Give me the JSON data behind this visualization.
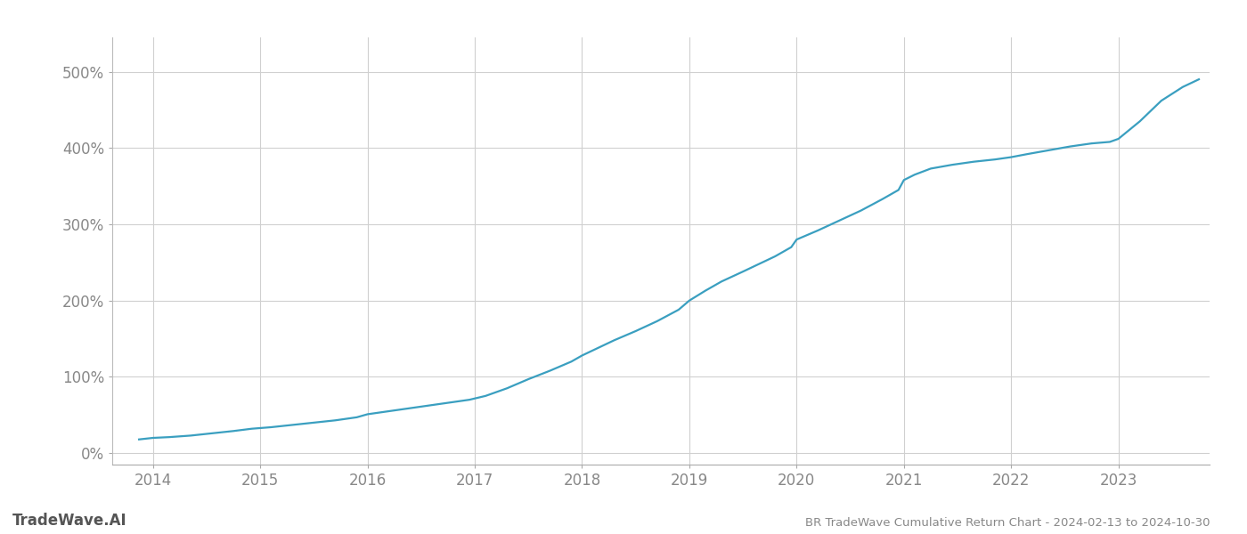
{
  "title": "BR TradeWave Cumulative Return Chart - 2024-02-13 to 2024-10-30",
  "watermark": "TradeWave.AI",
  "line_color": "#3a9fc0",
  "background_color": "#ffffff",
  "grid_color": "#d0d0d0",
  "x_years": [
    2014,
    2015,
    2016,
    2017,
    2018,
    2019,
    2020,
    2021,
    2022,
    2023
  ],
  "y_ticks": [
    0,
    100,
    200,
    300,
    400,
    500
  ],
  "xlim": [
    2013.62,
    2023.85
  ],
  "ylim": [
    -15,
    545
  ],
  "x_values": [
    2013.87,
    2014.0,
    2014.15,
    2014.35,
    2014.55,
    2014.75,
    2014.92,
    2015.1,
    2015.3,
    2015.5,
    2015.7,
    2015.9,
    2016.0,
    2016.2,
    2016.4,
    2016.6,
    2016.8,
    2016.95,
    2017.1,
    2017.3,
    2017.5,
    2017.7,
    2017.9,
    2018.0,
    2018.15,
    2018.3,
    2018.5,
    2018.7,
    2018.9,
    2019.0,
    2019.15,
    2019.3,
    2019.5,
    2019.65,
    2019.8,
    2019.95,
    2020.0,
    2020.2,
    2020.4,
    2020.6,
    2020.8,
    2020.95,
    2021.0,
    2021.1,
    2021.25,
    2021.45,
    2021.65,
    2021.85,
    2021.95,
    2022.0,
    2022.15,
    2022.35,
    2022.55,
    2022.75,
    2022.92,
    2023.0,
    2023.2,
    2023.4,
    2023.6,
    2023.75
  ],
  "y_values": [
    18,
    20,
    21,
    23,
    26,
    29,
    32,
    34,
    37,
    40,
    43,
    47,
    51,
    55,
    59,
    63,
    67,
    70,
    75,
    85,
    97,
    108,
    120,
    128,
    138,
    148,
    160,
    173,
    188,
    200,
    213,
    225,
    238,
    248,
    258,
    270,
    280,
    292,
    305,
    318,
    333,
    345,
    358,
    365,
    373,
    378,
    382,
    385,
    387,
    388,
    392,
    397,
    402,
    406,
    408,
    412,
    435,
    462,
    480,
    490
  ],
  "title_fontsize": 9.5,
  "tick_fontsize": 12,
  "watermark_fontsize": 12,
  "line_width": 1.6
}
